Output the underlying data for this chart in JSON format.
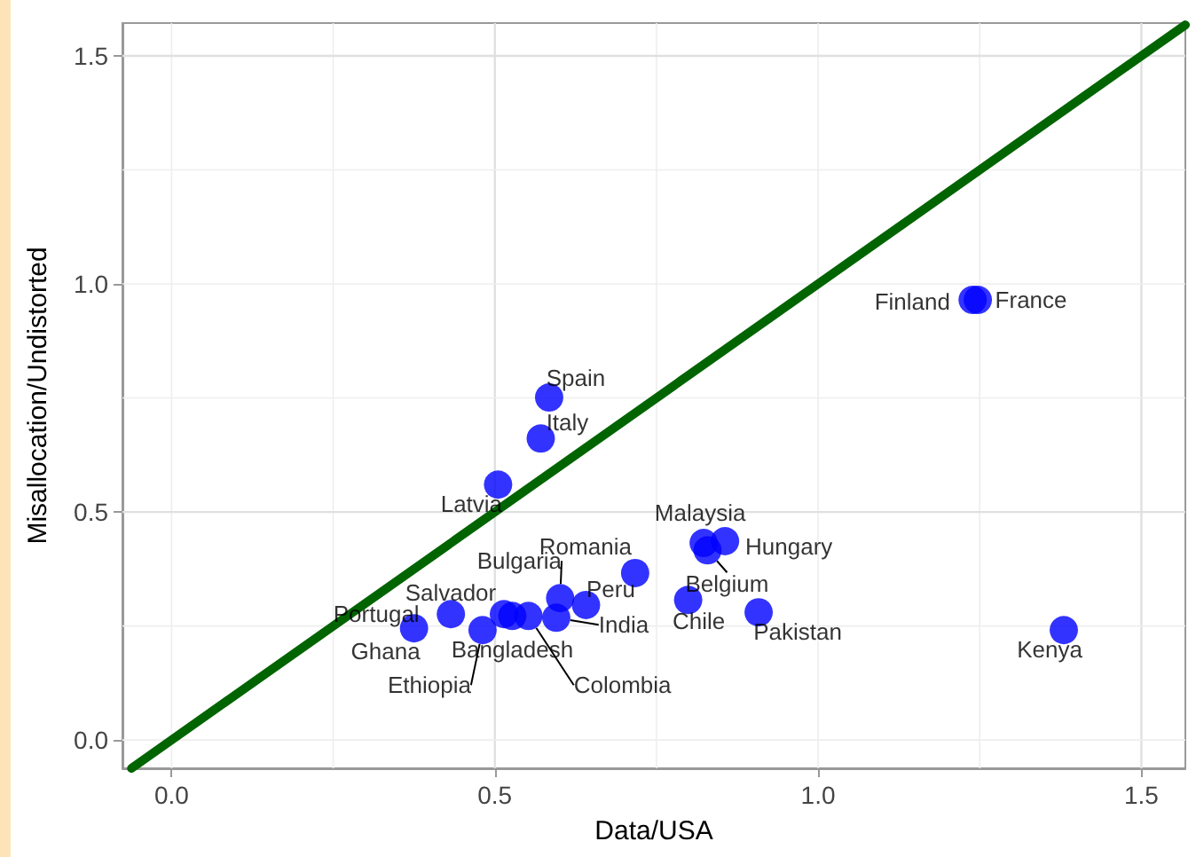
{
  "chart_data": {
    "type": "scatter",
    "xlabel": "Data/USA",
    "ylabel": "Misallocation/Undistorted",
    "xlim": [
      -0.076,
      1.568
    ],
    "ylim": [
      -0.062,
      1.572
    ],
    "xticks": [
      {
        "value": 0,
        "label": "0.0"
      },
      {
        "value": 0.25,
        "label": null
      },
      0.5,
      {
        "value": 0.75,
        "label": null
      },
      {
        "value": 1,
        "label": "1.0"
      },
      {
        "value": 1.25,
        "label": null
      },
      1.5
    ],
    "yticks": [
      {
        "value": 0,
        "label": "0.0"
      },
      {
        "value": 0.25,
        "label": null
      },
      0.5,
      {
        "value": 0.75,
        "label": null
      },
      {
        "value": 1,
        "label": "1.0"
      },
      {
        "value": 1.25,
        "label": null
      },
      1.5
    ],
    "grid": true,
    "series": [
      {
        "type": "line",
        "color": "#006400",
        "marker": "none",
        "line_style": "solid",
        "x": [
          -0.062,
          1.568
        ],
        "values": [
          -0.062,
          1.568
        ]
      },
      {
        "color": "#0000ff",
        "marker": "circle",
        "x": [
          0.375,
          0.432,
          0.481,
          0.514,
          0.527,
          0.552,
          0.601,
          0.595,
          0.641,
          0.505,
          0.571,
          0.584,
          0.717,
          0.799,
          0.823,
          0.829,
          0.856,
          0.908,
          1.38,
          1.239,
          1.247
        ],
        "values": [
          0.245,
          0.276,
          0.241,
          0.276,
          0.272,
          0.272,
          0.311,
          0.268,
          0.296,
          0.56,
          0.661,
          0.751,
          0.366,
          0.307,
          0.432,
          0.416,
          0.436,
          0.28,
          0.241,
          0.965,
          0.965
        ],
        "value_labels": [
          "Ghana",
          "Portugal",
          "Ethiopia",
          "Salvador",
          "Bangladesh",
          "Colombia",
          "Bulgaria",
          "India",
          "Peru",
          "Latvia",
          "Italy",
          "Spain",
          "Romania",
          "Chile",
          "Malaysia",
          "Belgium",
          "Hungary",
          "Pakistan",
          "Kenya",
          "Finland",
          "France"
        ]
      }
    ]
  }
}
